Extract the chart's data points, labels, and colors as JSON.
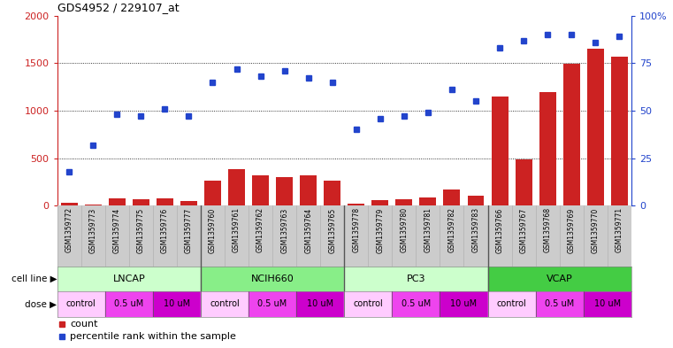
{
  "title": "GDS4952 / 229107_at",
  "samples": [
    "GSM1359772",
    "GSM1359773",
    "GSM1359774",
    "GSM1359775",
    "GSM1359776",
    "GSM1359777",
    "GSM1359760",
    "GSM1359761",
    "GSM1359762",
    "GSM1359763",
    "GSM1359764",
    "GSM1359765",
    "GSM1359778",
    "GSM1359779",
    "GSM1359780",
    "GSM1359781",
    "GSM1359782",
    "GSM1359783",
    "GSM1359766",
    "GSM1359767",
    "GSM1359768",
    "GSM1359769",
    "GSM1359770",
    "GSM1359771"
  ],
  "counts": [
    30,
    8,
    75,
    70,
    75,
    45,
    265,
    385,
    320,
    305,
    320,
    265,
    20,
    55,
    70,
    85,
    170,
    105,
    1150,
    490,
    1200,
    1490,
    1650,
    1570
  ],
  "percentiles_pct": [
    18,
    32,
    48,
    47,
    51,
    47,
    65,
    72,
    68,
    71,
    67,
    65,
    40,
    46,
    47,
    49,
    61,
    55,
    83,
    87,
    90,
    90,
    86,
    89
  ],
  "cell_lines": [
    {
      "name": "LNCAP",
      "start": 0,
      "end": 6,
      "color": "#ccffcc"
    },
    {
      "name": "NCIH660",
      "start": 6,
      "end": 12,
      "color": "#88ee88"
    },
    {
      "name": "PC3",
      "start": 12,
      "end": 18,
      "color": "#ccffcc"
    },
    {
      "name": "VCAP",
      "start": 18,
      "end": 24,
      "color": "#44cc44"
    }
  ],
  "doses": [
    {
      "name": "control",
      "start": 0,
      "end": 2,
      "color": "#ffccff"
    },
    {
      "name": "0.5 uM",
      "start": 2,
      "end": 4,
      "color": "#ee44ee"
    },
    {
      "name": "10 uM",
      "start": 4,
      "end": 6,
      "color": "#cc00cc"
    },
    {
      "name": "control",
      "start": 6,
      "end": 8,
      "color": "#ffccff"
    },
    {
      "name": "0.5 uM",
      "start": 8,
      "end": 10,
      "color": "#ee44ee"
    },
    {
      "name": "10 uM",
      "start": 10,
      "end": 12,
      "color": "#cc00cc"
    },
    {
      "name": "control",
      "start": 12,
      "end": 14,
      "color": "#ffccff"
    },
    {
      "name": "0.5 uM",
      "start": 14,
      "end": 16,
      "color": "#ee44ee"
    },
    {
      "name": "10 uM",
      "start": 16,
      "end": 18,
      "color": "#cc00cc"
    },
    {
      "name": "control",
      "start": 18,
      "end": 20,
      "color": "#ffccff"
    },
    {
      "name": "0.5 uM",
      "start": 20,
      "end": 22,
      "color": "#ee44ee"
    },
    {
      "name": "10 uM",
      "start": 22,
      "end": 24,
      "color": "#cc00cc"
    }
  ],
  "ylim_left": [
    0,
    2000
  ],
  "ylim_right": [
    0,
    100
  ],
  "yticks_left": [
    0,
    500,
    1000,
    1500,
    2000
  ],
  "yticks_right": [
    0,
    25,
    50,
    75,
    100
  ],
  "bar_color": "#cc2222",
  "dot_color": "#2244cc",
  "grid_color": "#000000",
  "bg_color": "#ffffff",
  "legend_count": "count",
  "legend_percentile": "percentile rank within the sample",
  "right_axis_color": "#2244cc",
  "left_axis_color": "#cc2222",
  "sample_label_bg": "#cccccc",
  "cell_line_label": "cell line",
  "dose_label": "dose"
}
